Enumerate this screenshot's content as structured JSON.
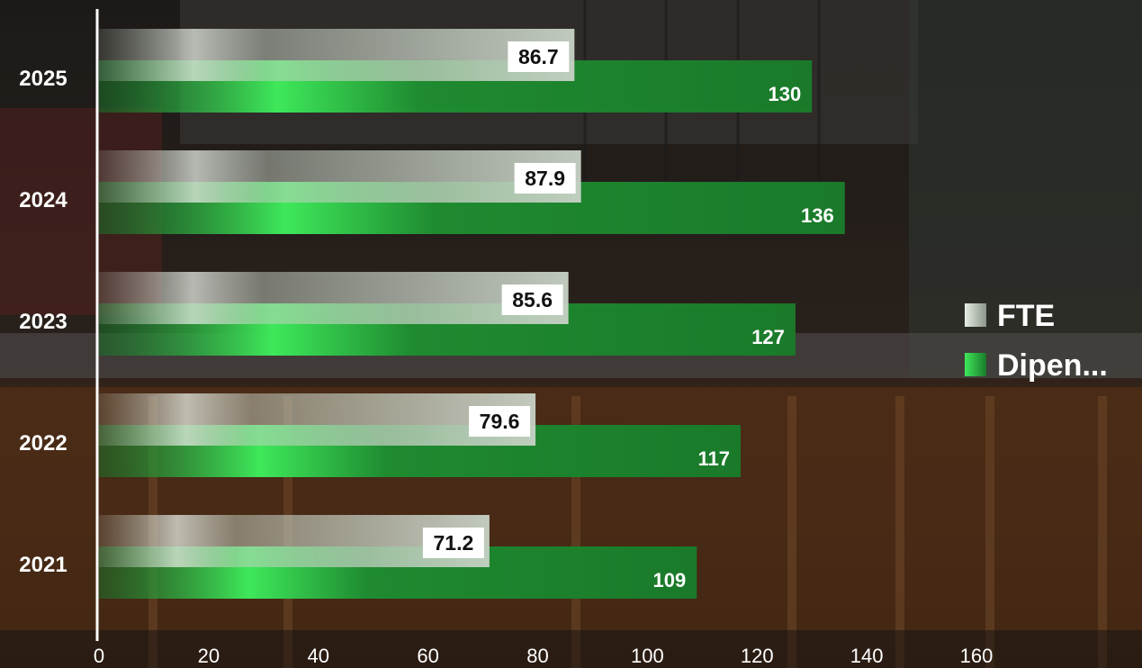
{
  "chart_data": {
    "type": "bar",
    "orientation": "horizontal",
    "categories": [
      "2025",
      "2024",
      "2023",
      "2022",
      "2021"
    ],
    "series": [
      {
        "name": "FTE",
        "values": [
          86.7,
          87.9,
          85.6,
          79.6,
          71.2
        ],
        "color": "#c9d3c8"
      },
      {
        "name": "Dipen...",
        "values": [
          130,
          136,
          127,
          117,
          109
        ],
        "color": "#1f7d2c"
      }
    ],
    "xlim": [
      0,
      160
    ],
    "xticks": [
      0,
      20,
      40,
      60,
      80,
      100,
      120,
      140,
      160
    ],
    "title": "",
    "xlabel": "",
    "ylabel": "",
    "grid": false,
    "legend_position": "right"
  }
}
